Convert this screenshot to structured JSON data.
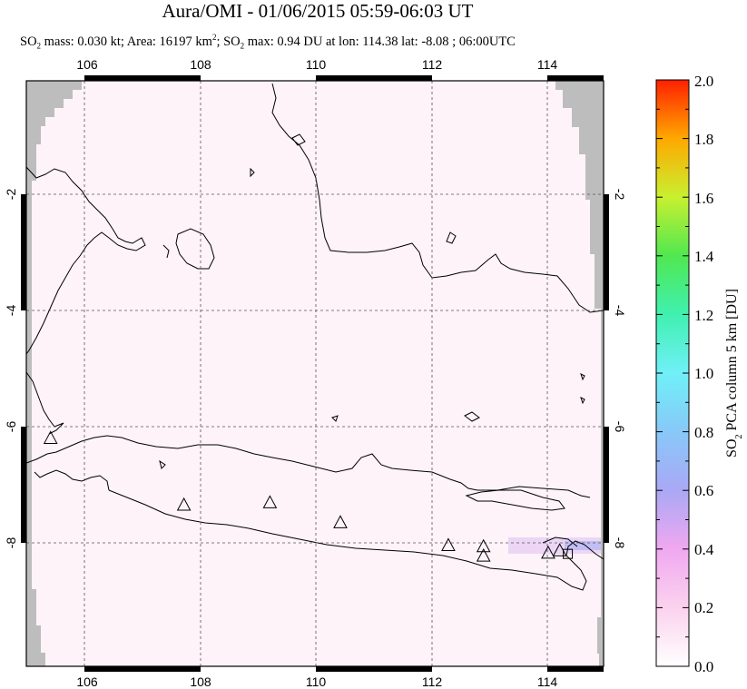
{
  "title": "Aura/OMI - 01/06/2015 05:59-06:03 UT",
  "subtitle": {
    "so2_prefix": "SO",
    "so2_sub": "2",
    "mass_text": " mass: 0.030 kt; Area: 16197 km",
    "area_sup": "2",
    "max_prefix": "; SO",
    "max_sub": "2",
    "max_text": " max: 0.94 DU at lon: 114.38 lat: -8.08 ; 06:00UTC"
  },
  "map": {
    "lon_range": [
      105.0,
      115.0
    ],
    "lat_range": [
      -10.0,
      0.0
    ],
    "lon_ticks": [
      "106",
      "108",
      "110",
      "112",
      "114"
    ],
    "lat_ticks": [
      "-2",
      "-4",
      "-6",
      "-8"
    ],
    "lat_ticks_right": [
      "-2",
      "-4",
      "-6",
      "-8"
    ],
    "grid": "dashed",
    "volcanoes": [
      {
        "lon": 105.42,
        "lat": -6.1
      },
      {
        "lon": 107.73,
        "lat": -7.24
      },
      {
        "lon": 109.22,
        "lat": -7.2
      },
      {
        "lon": 110.44,
        "lat": -7.54
      },
      {
        "lon": 112.31,
        "lat": -7.93
      },
      {
        "lon": 112.92,
        "lat": -7.95
      },
      {
        "lon": 112.92,
        "lat": -8.11
      },
      {
        "lon": 114.04,
        "lat": -8.06
      },
      {
        "lon": 114.24,
        "lat": -8.02
      }
    ],
    "so2_max_location": {
      "lon": 114.38,
      "lat": -8.08,
      "value": 0.94
    }
  },
  "colorbar": {
    "label_prefix": "SO",
    "label_sub": "2",
    "label_text": " PCA column 5 km [DU]",
    "ticks": [
      "0.0",
      "0.2",
      "0.4",
      "0.6",
      "0.8",
      "1.0",
      "1.2",
      "1.4",
      "1.6",
      "1.8",
      "2.0"
    ],
    "min": 0.0,
    "max": 2.0
  }
}
